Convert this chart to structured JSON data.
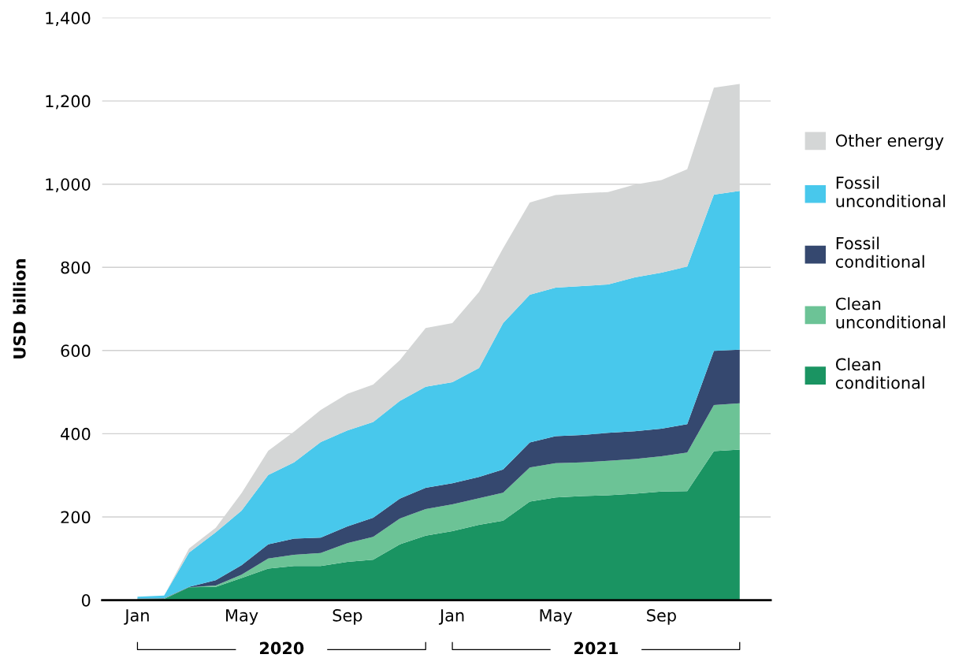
{
  "chart_data": {
    "type": "area",
    "stacked": true,
    "ylabel": "USD billion",
    "x": [
      "2020-01",
      "2020-02",
      "2020-03",
      "2020-04",
      "2020-05",
      "2020-06",
      "2020-07",
      "2020-08",
      "2020-09",
      "2020-10",
      "2020-11",
      "2020-12",
      "2021-01",
      "2021-02",
      "2021-03",
      "2021-04",
      "2021-05",
      "2021-06",
      "2021-07",
      "2021-08",
      "2021-09",
      "2021-10",
      "2021-11",
      "2021-12"
    ],
    "series": [
      {
        "name": "Clean conditional",
        "color": "#1a9462",
        "values": [
          2,
          3,
          31,
          32,
          53,
          76,
          82,
          82,
          92,
          97,
          134,
          155,
          166,
          181,
          191,
          237,
          247,
          250,
          252,
          256,
          261,
          262,
          358,
          362
        ]
      },
      {
        "name": "Clean unconditional",
        "color": "#6cc396",
        "values": [
          1,
          1,
          0,
          3,
          8,
          24,
          27,
          31,
          45,
          55,
          62,
          64,
          64,
          64,
          67,
          82,
          82,
          81,
          83,
          83,
          85,
          93,
          111,
          111
        ]
      },
      {
        "name": "Fossil conditional",
        "color": "#35486f",
        "values": [
          1,
          1,
          1,
          13,
          23,
          34,
          39,
          37,
          40,
          46,
          48,
          51,
          51,
          51,
          56,
          60,
          65,
          66,
          67,
          67,
          66,
          68,
          130,
          129
        ]
      },
      {
        "name": "Fossil unconditional",
        "color": "#48c8ec",
        "values": [
          4,
          6,
          82,
          115,
          131,
          167,
          183,
          230,
          231,
          230,
          235,
          243,
          243,
          262,
          352,
          355,
          357,
          358,
          357,
          370,
          375,
          379,
          376,
          382
        ]
      },
      {
        "name": "Other energy",
        "color": "#d4d6d6",
        "values": [
          0,
          0,
          10,
          11,
          42,
          58,
          74,
          77,
          88,
          90,
          98,
          141,
          142,
          183,
          180,
          222,
          223,
          223,
          222,
          223,
          223,
          234,
          257,
          257
        ]
      }
    ],
    "xlim": [
      "2019-11-21",
      "2022-01-06"
    ],
    "xticks": [
      {
        "value": "2020-01",
        "label": "Jan"
      },
      {
        "value": "2020-05",
        "label": "May"
      },
      {
        "value": "2020-09",
        "label": "Sep"
      },
      {
        "value": "2021-01",
        "label": "Jan"
      },
      {
        "value": "2021-05",
        "label": "May"
      },
      {
        "value": "2021-09",
        "label": "Sep"
      }
    ],
    "ylim": [
      0,
      1400
    ],
    "yticks": [
      0,
      200,
      400,
      600,
      800,
      {
        "value": 1000,
        "label": "1,000"
      },
      {
        "value": 1200,
        "label": "1,200"
      },
      {
        "value": 1400,
        "label": "1,400"
      }
    ],
    "annotations": [
      "2020",
      "2021"
    ],
    "grid": "y",
    "legend": "right"
  }
}
